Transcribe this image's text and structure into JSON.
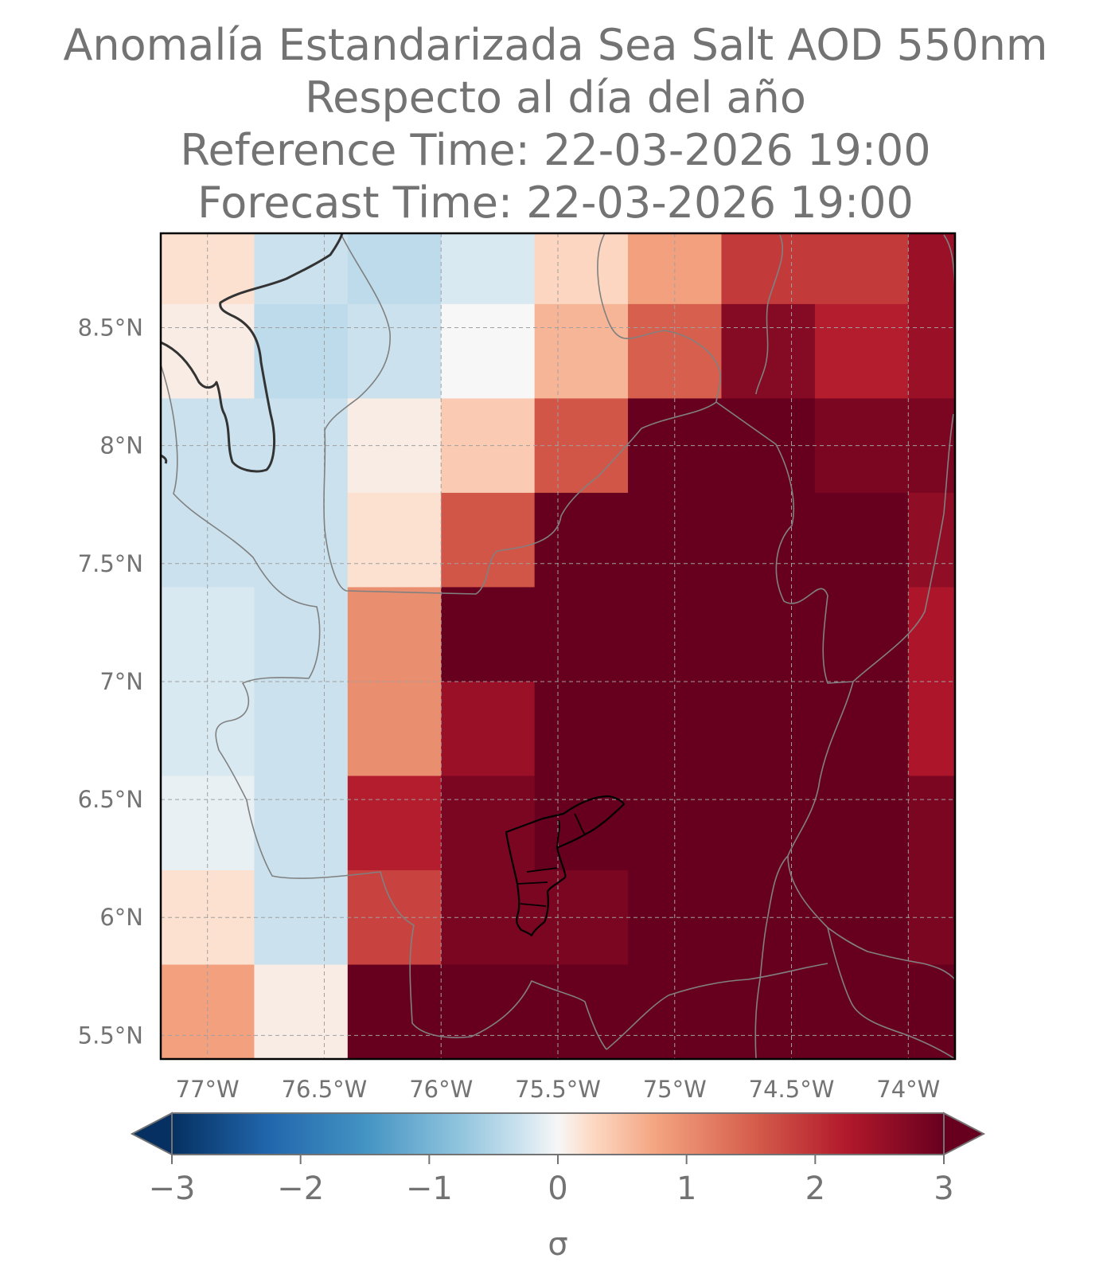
{
  "title": {
    "line1": "Anomalía Estandarizada Sea Salt AOD 550nm",
    "line2": "Respecto al día del año",
    "line3": "Reference Time: 22-03-2026 19:00",
    "line4": "Forecast Time: 22-03-2026 19:00"
  },
  "colors": {
    "text": "#737373",
    "frame": "#000000",
    "gridline": "#a0a0a0",
    "coastline": "#333333",
    "borders": "#808080",
    "city_outline": "#000000"
  },
  "chart_data": {
    "type": "heatmap",
    "map_extent": {
      "lon": [
        -77.2,
        -73.8
      ],
      "lat": [
        5.4,
        8.9
      ]
    },
    "grid_lons": [
      -77.0,
      -76.6,
      -76.2,
      -75.8,
      -75.4,
      -75.0,
      -74.6,
      -74.2,
      -73.8
    ],
    "grid_lats": [
      8.8,
      8.4,
      8.0,
      7.6,
      7.2,
      6.8,
      6.4,
      6.0,
      5.6
    ],
    "cell_size_deg": 0.4,
    "values": [
      [
        0.2,
        -0.3,
        -0.4,
        -0.2,
        0.3,
        0.8,
        1.9,
        1.9,
        2.5
      ],
      [
        0.1,
        -0.4,
        -0.3,
        0.0,
        0.6,
        1.5,
        2.7,
        2.2,
        2.5
      ],
      [
        -0.3,
        -0.3,
        0.1,
        0.4,
        1.6,
        3.0,
        3.0,
        2.8,
        2.8
      ],
      [
        -0.3,
        -0.3,
        0.2,
        1.6,
        3.0,
        3.0,
        3.0,
        3.0,
        2.6
      ],
      [
        -0.2,
        -0.3,
        1.0,
        3.0,
        3.0,
        3.0,
        3.0,
        3.0,
        2.3
      ],
      [
        -0.2,
        -0.3,
        1.0,
        2.5,
        3.0,
        3.0,
        3.0,
        3.0,
        2.3
      ],
      [
        -0.1,
        -0.3,
        2.2,
        2.8,
        3.0,
        3.0,
        3.0,
        3.0,
        2.8
      ],
      [
        0.2,
        -0.3,
        1.8,
        2.8,
        2.8,
        3.0,
        3.0,
        3.0,
        2.8
      ],
      [
        0.8,
        0.1,
        3.0,
        3.0,
        3.0,
        3.0,
        3.0,
        3.0,
        3.0
      ]
    ],
    "x_ticks": [
      -77.0,
      -76.5,
      -76.0,
      -75.5,
      -75.0,
      -74.5,
      -74.0
    ],
    "x_tick_labels": [
      "77°W",
      "76.5°W",
      "76°W",
      "75.5°W",
      "75°W",
      "74.5°W",
      "74°W"
    ],
    "y_ticks": [
      8.5,
      8.0,
      7.5,
      7.0,
      6.5,
      6.0,
      5.5
    ],
    "y_tick_labels": [
      "8.5°N",
      "8°N",
      "7.5°N",
      "7°N",
      "6.5°N",
      "6°N",
      "5.5°N"
    ],
    "grid": true,
    "colorbar": {
      "colormap": "RdBu_r",
      "range": [
        -3,
        3
      ],
      "extend": "both",
      "ticks": [
        -3,
        -2,
        -1,
        0,
        1,
        2,
        3
      ],
      "tick_labels": [
        "−3",
        "−2",
        "−1",
        "0",
        "1",
        "2",
        "3"
      ],
      "label": "σ",
      "placement": "bottom"
    }
  }
}
